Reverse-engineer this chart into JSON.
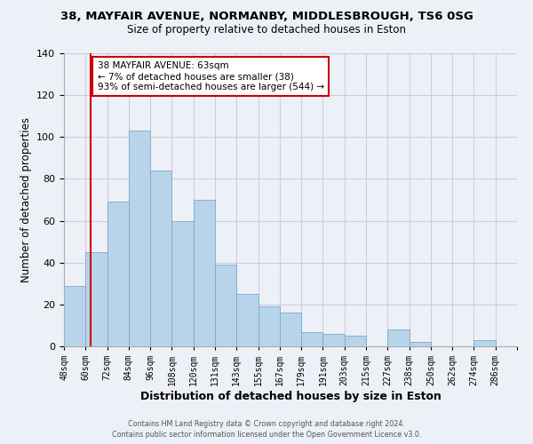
{
  "title": "38, MAYFAIR AVENUE, NORMANBY, MIDDLESBROUGH, TS6 0SG",
  "subtitle": "Size of property relative to detached houses in Eston",
  "xlabel": "Distribution of detached houses by size in Eston",
  "ylabel": "Number of detached properties",
  "bar_color": "#b8d4ea",
  "bar_edge_color": "#7aaac8",
  "bin_labels": [
    "48sqm",
    "60sqm",
    "72sqm",
    "84sqm",
    "96sqm",
    "108sqm",
    "120sqm",
    "131sqm",
    "143sqm",
    "155sqm",
    "167sqm",
    "179sqm",
    "191sqm",
    "203sqm",
    "215sqm",
    "227sqm",
    "238sqm",
    "250sqm",
    "262sqm",
    "274sqm",
    "286sqm"
  ],
  "bar_heights": [
    29,
    45,
    69,
    103,
    84,
    60,
    70,
    39,
    25,
    19,
    16,
    7,
    6,
    5,
    0,
    8,
    2,
    0,
    0,
    3,
    0
  ],
  "ylim": [
    0,
    140
  ],
  "yticks": [
    0,
    20,
    40,
    60,
    80,
    100,
    120,
    140
  ],
  "annotation_title": "38 MAYFAIR AVENUE: 63sqm",
  "annotation_line1": "← 7% of detached houses are smaller (38)",
  "annotation_line2": "93% of semi-detached houses are larger (544) →",
  "annotation_box_color": "#ffffff",
  "annotation_border_color": "#cc0000",
  "vline_color": "#cc0000",
  "grid_color": "#ccccdd",
  "footer_line1": "Contains HM Land Registry data © Crown copyright and database right 2024.",
  "footer_line2": "Contains public sector information licensed under the Open Government Licence v3.0.",
  "background_color": "#eef0f8"
}
